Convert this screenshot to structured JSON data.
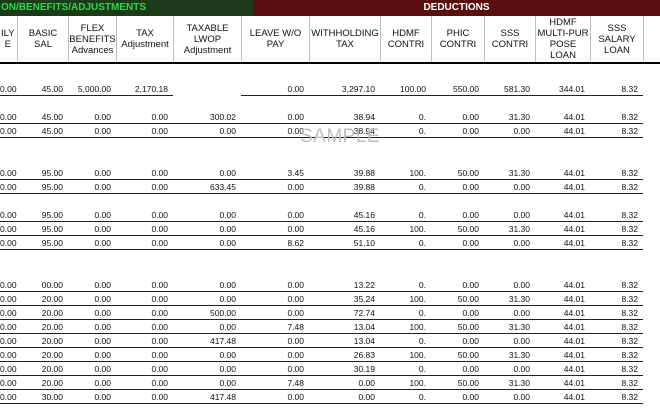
{
  "banner": {
    "left": "ON/BENEFITS/ADJUSTMENTS",
    "right": "DEDUCTIONS"
  },
  "columns": [
    {
      "label": "ILY\nE"
    },
    {
      "label": "BASIC SAL"
    },
    {
      "label": "FLEX\nBENEFITS\nAdvances"
    },
    {
      "label": "TAX\nAdjustment"
    },
    {
      "label": "TAXABLE\nLWOP\nAdjustment"
    },
    {
      "label": "LEAVE W/O\nPAY"
    },
    {
      "label": "WITHHOLDING\nTAX"
    },
    {
      "label": "HDMF\nCONTRI"
    },
    {
      "label": "PHIC\nCONTRI"
    },
    {
      "label": "SSS\nCONTRI"
    },
    {
      "label": "HDMF\nMULTI-PUR\nPOSE\nLOAN"
    },
    {
      "label": "SSS\nSALARY\nLOAN"
    },
    {
      "label": ""
    }
  ],
  "watermark": "SAMPLE",
  "rows": [
    {
      "cells": [
        "",
        "",
        "",
        "",
        "",
        "",
        "",
        "",
        "",
        "",
        "",
        "",
        ""
      ]
    },
    {
      "cells": [
        "0.00",
        "45.00",
        "5,000.00",
        "2,170.18",
        "",
        "0.00",
        "3,297.10",
        "100.00",
        "550.00",
        "581.30",
        "344.01",
        "8.32",
        ""
      ]
    },
    {
      "cells": [
        "",
        "",
        "",
        "",
        "",
        "",
        "",
        "",
        "",
        "",
        "",
        "",
        ""
      ]
    },
    {
      "cells": [
        "0.00",
        "45.00",
        "0.00",
        "0.00",
        "300.02",
        "0.00",
        "38.94",
        "0.",
        "0.00",
        "31.30",
        "44.01",
        "8.32",
        ""
      ]
    },
    {
      "cells": [
        "0.00",
        "45.00",
        "0.00",
        "0.00",
        "0.00",
        "0.00",
        "38.94",
        "0.",
        "0.00",
        "0.00",
        "44.01",
        "8.32",
        ""
      ]
    },
    {
      "cells": [
        "",
        "",
        "",
        "",
        "",
        "",
        "",
        "",
        "",
        "",
        "",
        "",
        ""
      ]
    },
    {
      "cells": [
        "",
        "",
        "",
        "",
        "",
        "",
        "",
        "",
        "",
        "",
        "",
        "",
        ""
      ]
    },
    {
      "cells": [
        "0.00",
        "95.00",
        "0.00",
        "0.00",
        "0.00",
        "3.45",
        "39.88",
        "100.",
        "50.00",
        "31.30",
        "44.01",
        "8.32",
        ""
      ]
    },
    {
      "cells": [
        "0.00",
        "95.00",
        "0.00",
        "0.00",
        "633.45",
        "0.00",
        "39.88",
        "0.",
        "0.00",
        "0.00",
        "44.01",
        "8.32",
        ""
      ]
    },
    {
      "cells": [
        "",
        "",
        "",
        "",
        "",
        "",
        "",
        "",
        "",
        "",
        "",
        "",
        ""
      ]
    },
    {
      "cells": [
        "0.00",
        "95.00",
        "0.00",
        "0.00",
        "0.00",
        "0.00",
        "45.16",
        "0.",
        "0.00",
        "0.00",
        "44.01",
        "8.32",
        ""
      ]
    },
    {
      "cells": [
        "0.00",
        "95.00",
        "0.00",
        "0.00",
        "0.00",
        "0.00",
        "45.16",
        "100.",
        "50.00",
        "31.30",
        "44.01",
        "8.32",
        ""
      ]
    },
    {
      "cells": [
        "0.00",
        "95.00",
        "0.00",
        "0.00",
        "0.00",
        "8.62",
        "51.10",
        "0.",
        "0.00",
        "0.00",
        "44.01",
        "8.32",
        ""
      ]
    },
    {
      "cells": [
        "",
        "",
        "",
        "",
        "",
        "",
        "",
        "",
        "",
        "",
        "",
        "",
        ""
      ]
    },
    {
      "cells": [
        "",
        "",
        "",
        "",
        "",
        "",
        "",
        "",
        "",
        "",
        "",
        "",
        ""
      ]
    },
    {
      "cells": [
        "0.00",
        "00.00",
        "0.00",
        "0.00",
        "0.00",
        "0.00",
        "13.22",
        "0.",
        "0.00",
        "0.00",
        "44.01",
        "8.32",
        ""
      ]
    },
    {
      "cells": [
        "0.00",
        "20.00",
        "0.00",
        "0.00",
        "0.00",
        "0.00",
        "35.24",
        "100.",
        "50.00",
        "31.30",
        "44.01",
        "8.32",
        ""
      ]
    },
    {
      "cells": [
        "0.00",
        "20.00",
        "0.00",
        "0.00",
        "500.00",
        "0.00",
        "72.74",
        "0.",
        "0.00",
        "0.00",
        "44.01",
        "8.32",
        ""
      ]
    },
    {
      "cells": [
        "0.00",
        "20.00",
        "0.00",
        "0.00",
        "0.00",
        "7.48",
        "13.04",
        "100.",
        "50.00",
        "31.30",
        "44.01",
        "8.32",
        ""
      ]
    },
    {
      "cells": [
        "0.00",
        "20.00",
        "0.00",
        "0.00",
        "417.48",
        "0.00",
        "13.04",
        "0.",
        "0.00",
        "0.00",
        "44.01",
        "8.32",
        ""
      ]
    },
    {
      "cells": [
        "0.00",
        "20.00",
        "0.00",
        "0.00",
        "0.00",
        "0.00",
        "26.83",
        "100.",
        "50.00",
        "31.30",
        "44.01",
        "8.32",
        ""
      ]
    },
    {
      "cells": [
        "0.00",
        "20.00",
        "0.00",
        "0.00",
        "0.00",
        "0.00",
        "30.19",
        "0.",
        "0.00",
        "0.00",
        "44.01",
        "8.32",
        ""
      ]
    },
    {
      "cells": [
        "0.00",
        "20.00",
        "0.00",
        "0.00",
        "0.00",
        "7.48",
        "0.00",
        "100.",
        "50.00",
        "31.30",
        "44.01",
        "8.32",
        ""
      ]
    },
    {
      "cells": [
        "0.00",
        "30.00",
        "0.00",
        "0.00",
        "417.48",
        "0.00",
        "0.00",
        "0.",
        "0.00",
        "0.00",
        "44.01",
        "8.32",
        ""
      ]
    },
    {
      "cells": [
        "",
        "",
        "",
        "",
        "",
        "",
        "",
        "",
        "",
        "",
        "",
        "",
        ""
      ]
    },
    {
      "cells": [
        "",
        "",
        "",
        "",
        "",
        "",
        "",
        "",
        "",
        "",
        "",
        "",
        ""
      ]
    }
  ]
}
